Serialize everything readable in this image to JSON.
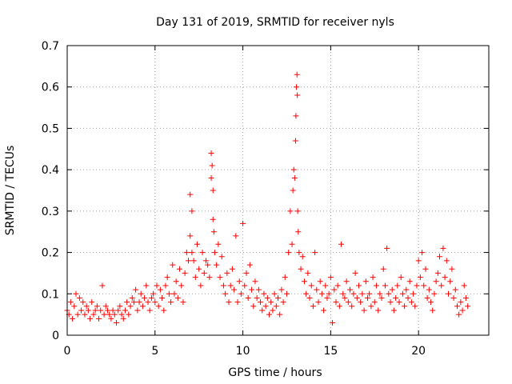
{
  "chart_data": {
    "type": "scatter",
    "title": "Day 131 of 2019, SRMTID for receiver nyls",
    "xlabel": "GPS time / hours",
    "ylabel": "SRMTID / TECUs",
    "xlim": [
      0,
      24
    ],
    "ylim": [
      0,
      0.7
    ],
    "xticks": [
      0,
      5,
      10,
      15,
      20
    ],
    "xtick_labels": [
      "0",
      "5",
      "10",
      "15",
      "20"
    ],
    "yticks": [
      0,
      0.1,
      0.2,
      0.3,
      0.4,
      0.5,
      0.6,
      0.7
    ],
    "ytick_labels": [
      "0",
      "0.1",
      "0.2",
      "0.3",
      "0.4",
      "0.5",
      "0.6",
      "0.7"
    ],
    "grid": true,
    "marker": "+",
    "color": "#ff0000",
    "series": [
      {
        "name": "SRMTID",
        "x": [
          0.0,
          0.1,
          0.2,
          0.3,
          0.4,
          0.5,
          0.6,
          0.7,
          0.8,
          0.9,
          1.0,
          1.1,
          1.2,
          1.3,
          1.4,
          1.5,
          1.6,
          1.7,
          1.8,
          1.9,
          2.0,
          2.1,
          2.2,
          2.3,
          2.4,
          2.5,
          2.6,
          2.7,
          2.8,
          2.9,
          3.0,
          3.1,
          3.2,
          3.3,
          3.4,
          3.5,
          3.6,
          3.7,
          3.8,
          3.9,
          4.0,
          4.1,
          4.2,
          4.3,
          4.4,
          4.5,
          4.6,
          4.7,
          4.8,
          4.9,
          5.0,
          5.1,
          5.2,
          5.3,
          5.4,
          5.5,
          5.6,
          5.7,
          5.8,
          5.9,
          6.0,
          6.1,
          6.2,
          6.3,
          6.4,
          6.5,
          6.6,
          6.7,
          6.8,
          6.9,
          7.0,
          7.0,
          7.1,
          7.1,
          7.2,
          7.3,
          7.4,
          7.5,
          7.6,
          7.7,
          7.8,
          7.9,
          8.0,
          8.1,
          8.2,
          8.2,
          8.25,
          8.3,
          8.3,
          8.35,
          8.4,
          8.5,
          8.6,
          8.7,
          8.8,
          8.9,
          9.0,
          9.1,
          9.2,
          9.3,
          9.4,
          9.5,
          9.6,
          9.7,
          9.8,
          9.9,
          10.0,
          10.1,
          10.2,
          10.3,
          10.4,
          10.5,
          10.6,
          10.7,
          10.8,
          10.9,
          11.0,
          11.1,
          11.2,
          11.3,
          11.4,
          11.5,
          11.6,
          11.7,
          11.8,
          11.9,
          12.0,
          12.1,
          12.2,
          12.3,
          12.4,
          12.5,
          12.6,
          12.7,
          12.8,
          12.85,
          12.9,
          12.95,
          13.0,
          13.02,
          13.05,
          13.08,
          13.1,
          13.12,
          13.15,
          13.2,
          13.3,
          13.4,
          13.5,
          13.6,
          13.7,
          13.8,
          13.9,
          14.0,
          14.1,
          14.2,
          14.3,
          14.4,
          14.5,
          14.6,
          14.7,
          14.8,
          14.9,
          15.0,
          15.1,
          15.2,
          15.3,
          15.4,
          15.5,
          15.6,
          15.7,
          15.8,
          15.9,
          16.0,
          16.1,
          16.2,
          16.3,
          16.4,
          16.5,
          16.6,
          16.7,
          16.8,
          16.9,
          17.0,
          17.1,
          17.2,
          17.3,
          17.4,
          17.5,
          17.6,
          17.7,
          17.8,
          17.9,
          18.0,
          18.1,
          18.2,
          18.3,
          18.4,
          18.5,
          18.6,
          18.7,
          18.8,
          18.9,
          19.0,
          19.1,
          19.2,
          19.3,
          19.4,
          19.5,
          19.6,
          19.7,
          19.8,
          19.9,
          20.0,
          20.1,
          20.2,
          20.3,
          20.4,
          20.5,
          20.6,
          20.7,
          20.8,
          20.9,
          21.0,
          21.1,
          21.2,
          21.3,
          21.4,
          21.5,
          21.6,
          21.7,
          21.8,
          21.9,
          22.0,
          22.1,
          22.2,
          22.3,
          22.4,
          22.5,
          22.6,
          22.7,
          22.8
        ],
        "y": [
          0.06,
          0.05,
          0.08,
          0.04,
          0.07,
          0.1,
          0.05,
          0.09,
          0.06,
          0.08,
          0.05,
          0.07,
          0.06,
          0.04,
          0.08,
          0.05,
          0.06,
          0.07,
          0.04,
          0.06,
          0.12,
          0.05,
          0.07,
          0.06,
          0.05,
          0.04,
          0.06,
          0.05,
          0.03,
          0.06,
          0.07,
          0.05,
          0.04,
          0.06,
          0.08,
          0.05,
          0.07,
          0.09,
          0.08,
          0.11,
          0.06,
          0.08,
          0.1,
          0.07,
          0.09,
          0.12,
          0.08,
          0.06,
          0.09,
          0.1,
          0.08,
          0.12,
          0.07,
          0.11,
          0.09,
          0.06,
          0.12,
          0.14,
          0.1,
          0.08,
          0.17,
          0.1,
          0.13,
          0.09,
          0.16,
          0.12,
          0.08,
          0.15,
          0.2,
          0.18,
          0.24,
          0.34,
          0.3,
          0.2,
          0.18,
          0.14,
          0.22,
          0.16,
          0.12,
          0.2,
          0.15,
          0.18,
          0.17,
          0.14,
          0.38,
          0.44,
          0.41,
          0.35,
          0.28,
          0.25,
          0.2,
          0.17,
          0.22,
          0.14,
          0.19,
          0.12,
          0.1,
          0.15,
          0.08,
          0.12,
          0.16,
          0.11,
          0.24,
          0.08,
          0.13,
          0.1,
          0.27,
          0.12,
          0.15,
          0.09,
          0.17,
          0.11,
          0.07,
          0.13,
          0.09,
          0.11,
          0.08,
          0.06,
          0.1,
          0.07,
          0.09,
          0.05,
          0.08,
          0.06,
          0.1,
          0.07,
          0.09,
          0.05,
          0.11,
          0.08,
          0.14,
          0.1,
          0.2,
          0.3,
          0.22,
          0.35,
          0.4,
          0.38,
          0.47,
          0.53,
          0.6,
          0.63,
          0.58,
          0.3,
          0.25,
          0.2,
          0.16,
          0.19,
          0.13,
          0.1,
          0.15,
          0.09,
          0.12,
          0.07,
          0.2,
          0.11,
          0.08,
          0.13,
          0.1,
          0.06,
          0.12,
          0.09,
          0.1,
          0.14,
          0.03,
          0.11,
          0.08,
          0.12,
          0.07,
          0.22,
          0.1,
          0.09,
          0.13,
          0.08,
          0.11,
          0.07,
          0.1,
          0.15,
          0.09,
          0.12,
          0.08,
          0.1,
          0.06,
          0.13,
          0.09,
          0.1,
          0.07,
          0.14,
          0.08,
          0.12,
          0.06,
          0.1,
          0.09,
          0.16,
          0.12,
          0.21,
          0.1,
          0.08,
          0.11,
          0.06,
          0.09,
          0.12,
          0.08,
          0.14,
          0.1,
          0.07,
          0.11,
          0.09,
          0.13,
          0.08,
          0.1,
          0.07,
          0.12,
          0.18,
          0.14,
          0.2,
          0.12,
          0.16,
          0.09,
          0.11,
          0.08,
          0.06,
          0.1,
          0.13,
          0.15,
          0.19,
          0.12,
          0.21,
          0.14,
          0.18,
          0.1,
          0.13,
          0.16,
          0.09,
          0.11,
          0.07,
          0.05,
          0.08,
          0.06,
          0.12,
          0.09,
          0.07
        ]
      }
    ]
  }
}
